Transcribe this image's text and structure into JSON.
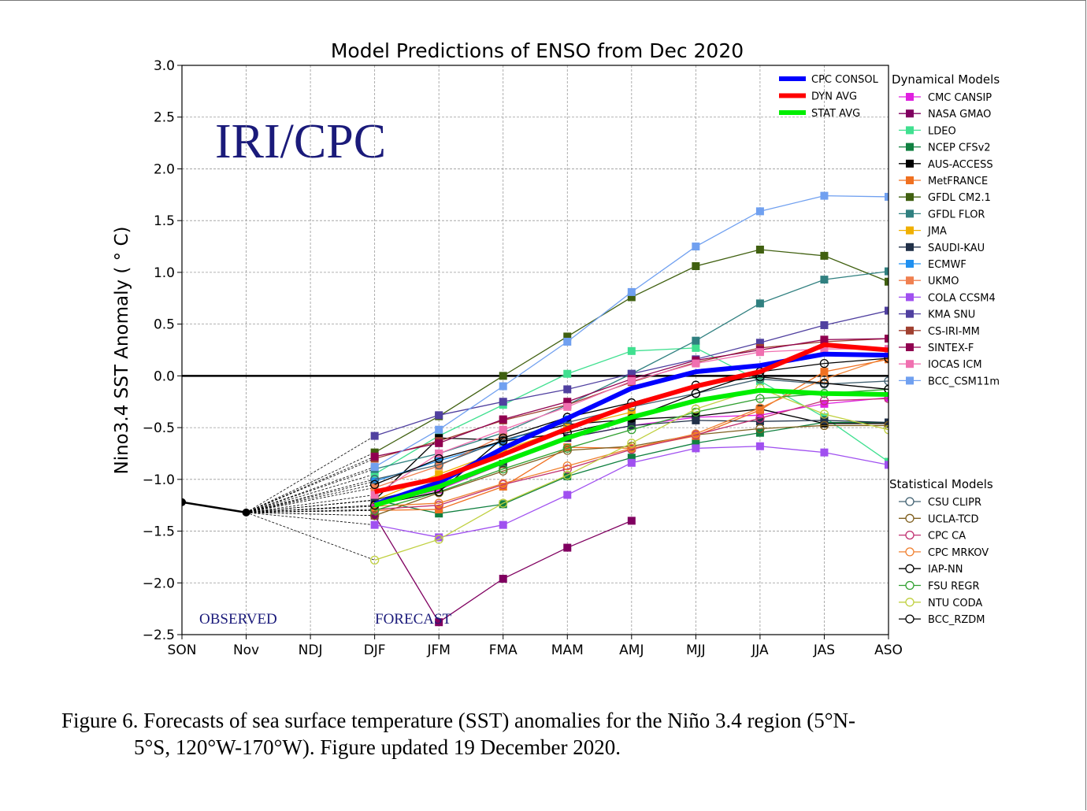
{
  "chart_data": {
    "type": "line",
    "title": "Model Predictions of ENSO from Dec 2020",
    "ylabel": "Nino3.4 SST Anomaly ( ° C)",
    "xlabel": "",
    "categories": [
      "SON",
      "Nov",
      "NDJ",
      "DJF",
      "JFM",
      "FMA",
      "MAM",
      "AMJ",
      "MJJ",
      "JJA",
      "JAS",
      "ASO"
    ],
    "ylim": [
      -2.5,
      3.0
    ],
    "yticks": [
      "3.0",
      "2.5",
      "2.0",
      "1.5",
      "1.0",
      "0.5",
      "0.0",
      "−0.5",
      "−1.0",
      "−1.5",
      "−2.0",
      "−2.5"
    ],
    "grid": true,
    "watermark": "IRI/CPC",
    "observed_label": "OBSERVED",
    "forecast_label": "FORECAST",
    "observed": {
      "name": "Observed",
      "color": "#000000",
      "x": [
        0,
        1
      ],
      "values": [
        -1.22,
        -1.32
      ]
    },
    "consensus_series": [
      {
        "name": "CPC CONSOL",
        "color": "#0000ff",
        "values": [
          -1.24,
          -1.03,
          -0.7,
          -0.41,
          -0.12,
          0.04,
          0.1,
          0.21,
          0.2
        ]
      },
      {
        "name": "DYN AVG",
        "color": "#ff0000",
        "values": [
          -1.12,
          -0.99,
          -0.76,
          -0.51,
          -0.28,
          -0.1,
          0.04,
          0.3,
          0.25
        ]
      },
      {
        "name": "STAT AVG",
        "color": "#00ee00",
        "values": [
          -1.25,
          -1.07,
          -0.83,
          -0.6,
          -0.4,
          -0.24,
          -0.14,
          -0.17,
          -0.18
        ]
      }
    ],
    "dynamical_title": "Dynamical Models",
    "dynamical_series": [
      {
        "name": "CMC CANSIP",
        "color": "#e020e0",
        "values": [
          -1.25,
          -1.1,
          -0.85,
          -0.6,
          -0.48,
          -0.4,
          -0.38,
          -0.27,
          -0.21
        ]
      },
      {
        "name": "NASA GMAO",
        "color": "#800060",
        "values": [
          -1.35,
          -2.38,
          -1.96,
          -1.66,
          -1.4
        ]
      },
      {
        "name": "LDEO",
        "color": "#40e090",
        "values": [
          -0.95,
          -0.58,
          -0.28,
          0.02,
          0.24,
          0.27,
          -0.05,
          -0.4,
          -0.83
        ]
      },
      {
        "name": "NCEP CFSv2",
        "color": "#108040",
        "values": [
          -1.2,
          -1.33,
          -1.24,
          -0.97,
          -0.79,
          -0.65,
          -0.55,
          -0.45,
          -0.45
        ]
      },
      {
        "name": "AUS-ACCESS",
        "color": "#000000",
        "values": [
          -1.2,
          -0.6,
          -0.62,
          -0.47,
          -0.42,
          -0.39,
          -0.32,
          -0.46,
          -0.46
        ]
      },
      {
        "name": "MetFRANCE",
        "color": "#f07020",
        "values": [
          -1.3,
          -1.29,
          -1.07,
          -0.69,
          -0.7,
          -0.58,
          -0.33,
          0.04,
          0.16
        ]
      },
      {
        "name": "GFDL CM2.1",
        "color": "#406010",
        "values": [
          -0.74,
          -0.39,
          0.0,
          0.38,
          0.76,
          1.06,
          1.22,
          1.16,
          0.91
        ]
      },
      {
        "name": "GFDL FLOR",
        "color": "#308080",
        "values": [
          -0.9,
          -0.75,
          -0.55,
          -0.28,
          0.02,
          0.34,
          0.7,
          0.93,
          1.01
        ]
      },
      {
        "name": "JMA",
        "color": "#f0b000",
        "values": [
          -1.2,
          -0.95,
          -0.72,
          -0.5,
          -0.35
        ]
      },
      {
        "name": "SAUDI-KAU",
        "color": "#203048",
        "values": [
          -1.2,
          -1.05,
          -0.85,
          -0.6,
          -0.48,
          -0.43,
          -0.44,
          -0.43,
          -0.45
        ]
      },
      {
        "name": "ECMWF",
        "color": "#2090f0",
        "values": [
          -1.02,
          -0.82,
          -0.64,
          -0.42
        ]
      },
      {
        "name": "UKMO",
        "color": "#f08050",
        "values": [
          -1.08,
          -0.87,
          -0.58
        ]
      },
      {
        "name": "COLA CCSM4",
        "color": "#a050f0",
        "values": [
          -1.44,
          -1.56,
          -1.44,
          -1.15,
          -0.84,
          -0.7,
          -0.68,
          -0.74,
          -0.86
        ]
      },
      {
        "name": "KMA SNU",
        "color": "#5040a0",
        "values": [
          -0.58,
          -0.38,
          -0.25,
          -0.13,
          0.02,
          0.16,
          0.32,
          0.49,
          0.63
        ]
      },
      {
        "name": "CS-IRI-MM",
        "color": "#a04030",
        "values": [
          -0.8,
          -0.63,
          -0.43,
          -0.28,
          -0.06,
          0.13,
          0.27,
          0.33,
          0.36
        ]
      },
      {
        "name": "SINTEX-F",
        "color": "#900050",
        "values": [
          -0.78,
          -0.65,
          -0.42,
          -0.25,
          -0.03,
          0.15,
          0.25,
          0.35,
          0.36
        ]
      },
      {
        "name": "IOCAS ICM",
        "color": "#f070b0",
        "values": [
          -1.15,
          -0.75,
          -0.52,
          -0.3,
          -0.05,
          0.12,
          0.23,
          0.26,
          0.26
        ]
      },
      {
        "name": "BCC_CSM11m",
        "color": "#70a0f0",
        "values": [
          -0.88,
          -0.52,
          -0.1,
          0.33,
          0.81,
          1.25,
          1.59,
          1.74,
          1.73
        ]
      }
    ],
    "statistical_title": "Statistical Models",
    "statistical_series": [
      {
        "name": "CSU CLIPR",
        "color": "#406070",
        "values": [
          -1.0,
          -0.86,
          -0.62,
          -0.45,
          -0.3,
          -0.17,
          -0.03,
          -0.08,
          -0.05
        ]
      },
      {
        "name": "UCLA-TCD",
        "color": "#806020",
        "values": [
          -1.35,
          -1.13,
          -0.92,
          -0.72,
          -0.68,
          -0.57,
          -0.51,
          -0.48,
          -0.48
        ]
      },
      {
        "name": "CPC CA",
        "color": "#c03070",
        "values": [
          -1.29,
          -1.25,
          -1.05,
          -0.9,
          -0.71,
          -0.57,
          -0.41,
          -0.24,
          -0.22
        ]
      },
      {
        "name": "CPC MRKOV",
        "color": "#f08030",
        "values": [
          -1.26,
          -1.23,
          -1.04,
          -0.87,
          -0.7,
          -0.56,
          -0.31,
          -0.03,
          0.18
        ]
      },
      {
        "name": "IAP-NN",
        "color": "#000000",
        "values": [
          -1.05,
          -0.8,
          -0.63,
          -0.55,
          -0.41,
          -0.17,
          0.04,
          0.12,
          0.17
        ]
      },
      {
        "name": "FSU REGR",
        "color": "#30a030",
        "values": [
          -1.3,
          -1.12,
          -0.9,
          -0.7,
          -0.52,
          -0.35,
          -0.22,
          -0.17,
          -0.13
        ]
      },
      {
        "name": "NTU CODA",
        "color": "#c0d040",
        "values": [
          -1.78,
          -1.58,
          -1.23,
          -0.96,
          -0.65,
          -0.32,
          -0.12,
          -0.37,
          -0.52
        ]
      },
      {
        "name": "BCC_RZDM",
        "color": "#000000",
        "values": [
          -1.25,
          -1.12,
          -0.6,
          -0.4,
          -0.26,
          -0.09,
          -0.01,
          -0.07,
          -0.13
        ]
      }
    ]
  },
  "caption": {
    "line1": "Figure  6. Forecasts of sea surface temperature (SST) anomalies  for the Niño  3.4 region  (5°N-",
    "line2": "5°S, 120°W-170°W).  Figure  updated 19  December 2020."
  }
}
